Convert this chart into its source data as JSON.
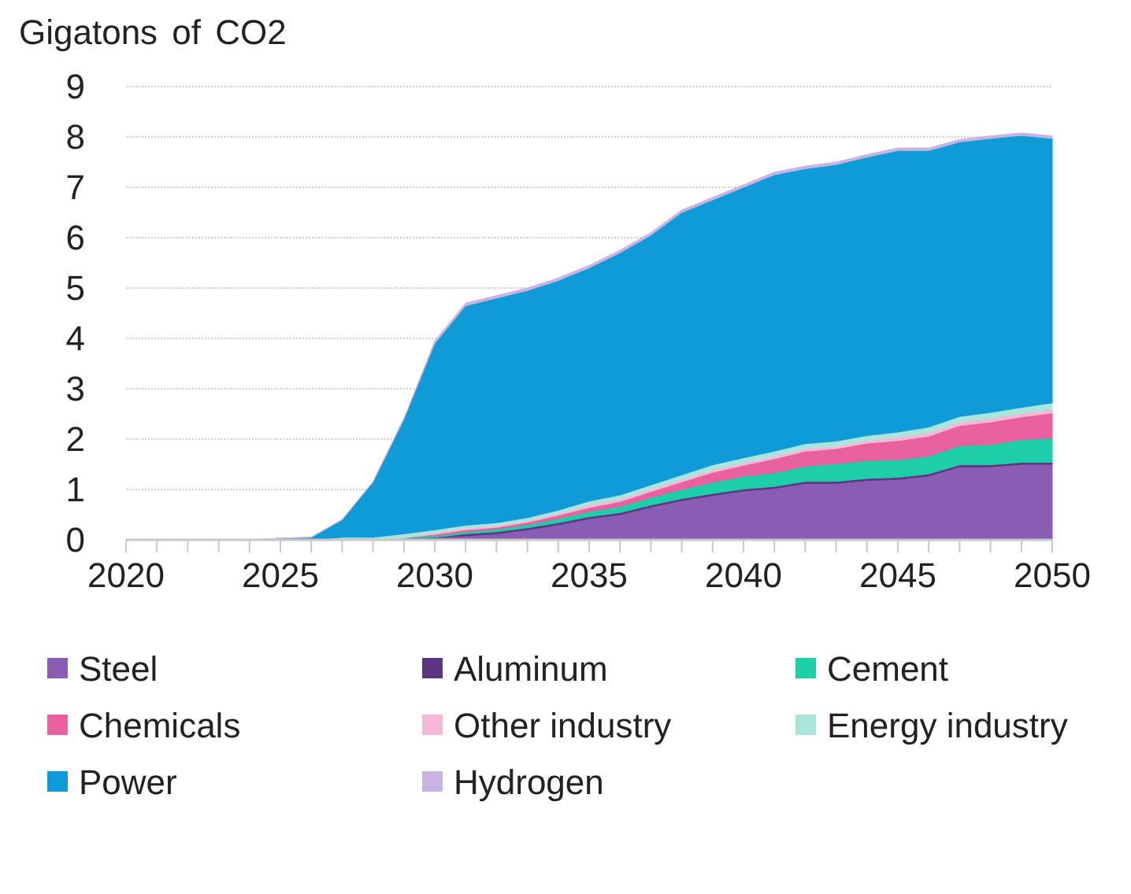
{
  "chart_data": {
    "type": "area",
    "stacked": true,
    "ylabel": "Gigatons of CO2",
    "x": [
      2020,
      2021,
      2022,
      2023,
      2024,
      2025,
      2026,
      2027,
      2028,
      2029,
      2030,
      2031,
      2032,
      2033,
      2034,
      2035,
      2036,
      2037,
      2038,
      2039,
      2040,
      2041,
      2042,
      2043,
      2044,
      2045,
      2046,
      2047,
      2048,
      2049,
      2050
    ],
    "series": [
      {
        "name": "Steel",
        "color": "#8a5db5",
        "values": [
          0,
          0,
          0,
          0,
          0,
          0,
          0,
          0,
          0,
          0.02,
          0.05,
          0.08,
          0.12,
          0.2,
          0.3,
          0.42,
          0.5,
          0.65,
          0.78,
          0.88,
          0.97,
          1.02,
          1.12,
          1.12,
          1.18,
          1.2,
          1.27,
          1.45,
          1.45,
          1.5,
          1.5
        ]
      },
      {
        "name": "Aluminum",
        "color": "#5a3580",
        "values": [
          0,
          0,
          0,
          0,
          0,
          0,
          0,
          0,
          0,
          0,
          0,
          0.04,
          0.04,
          0.04,
          0.04,
          0.04,
          0.04,
          0.04,
          0.04,
          0.04,
          0.04,
          0.04,
          0.04,
          0.04,
          0.04,
          0.04,
          0.04,
          0.04,
          0.04,
          0.04,
          0.04
        ]
      },
      {
        "name": "Cement",
        "color": "#1ccfa8",
        "values": [
          0,
          0,
          0,
          0,
          0,
          0,
          0,
          0,
          0,
          0.02,
          0.03,
          0.04,
          0.05,
          0.06,
          0.08,
          0.1,
          0.12,
          0.15,
          0.18,
          0.22,
          0.25,
          0.27,
          0.3,
          0.35,
          0.35,
          0.35,
          0.35,
          0.38,
          0.4,
          0.45,
          0.48
        ]
      },
      {
        "name": "Chemicals",
        "color": "#e8609e",
        "values": [
          0,
          0,
          0,
          0,
          0,
          0,
          0,
          0,
          0,
          0,
          0.03,
          0.04,
          0.04,
          0.05,
          0.07,
          0.08,
          0.1,
          0.12,
          0.15,
          0.2,
          0.22,
          0.28,
          0.3,
          0.3,
          0.35,
          0.38,
          0.4,
          0.4,
          0.45,
          0.45,
          0.5
        ]
      },
      {
        "name": "Other industry",
        "color": "#f5b8d8",
        "values": [
          0,
          0,
          0,
          0,
          0,
          0,
          0,
          0,
          0,
          0,
          0.03,
          0.03,
          0.03,
          0.03,
          0.03,
          0.05,
          0.05,
          0.05,
          0.05,
          0.05,
          0.05,
          0.05,
          0.05,
          0.05,
          0.05,
          0.07,
          0.07,
          0.07,
          0.07,
          0.07,
          0.07
        ]
      },
      {
        "name": "Energy industry",
        "color": "#a8e6dc",
        "values": [
          0,
          0,
          0,
          0,
          0,
          0,
          0,
          0.05,
          0.05,
          0.08,
          0.06,
          0.06,
          0.06,
          0.06,
          0.07,
          0.08,
          0.08,
          0.08,
          0.09,
          0.1,
          0.1,
          0.1,
          0.1,
          0.1,
          0.1,
          0.1,
          0.11,
          0.11,
          0.12,
          0.12,
          0.13
        ]
      },
      {
        "name": "Power",
        "color": "#0f9bd7",
        "values": [
          0,
          0,
          0,
          0,
          0,
          0.03,
          0.05,
          0.35,
          1.1,
          2.28,
          3.7,
          4.36,
          4.46,
          4.51,
          4.56,
          4.63,
          4.81,
          4.96,
          5.21,
          5.26,
          5.37,
          5.49,
          5.46,
          5.49,
          5.53,
          5.59,
          5.49,
          5.45,
          5.44,
          5.4,
          5.25
        ]
      },
      {
        "name": "Hydrogen",
        "color": "#c8b4e0",
        "values": [
          0,
          0,
          0,
          0,
          0,
          0,
          0,
          0,
          0,
          0,
          0.05,
          0.05,
          0.05,
          0.05,
          0.05,
          0.05,
          0.05,
          0.05,
          0.05,
          0.05,
          0.05,
          0.05,
          0.05,
          0.05,
          0.05,
          0.05,
          0.05,
          0.05,
          0.05,
          0.05,
          0.05
        ]
      }
    ],
    "xlim": [
      2020,
      2050
    ],
    "xticks": [
      2020,
      {
        "value": 2021,
        "label": null
      },
      {
        "value": 2022,
        "label": null
      },
      {
        "value": 2023,
        "label": null
      },
      {
        "value": 2024,
        "label": null
      },
      2025,
      {
        "value": 2026,
        "label": null
      },
      {
        "value": 2027,
        "label": null
      },
      {
        "value": 2028,
        "label": null
      },
      {
        "value": 2029,
        "label": null
      },
      2030,
      {
        "value": 2031,
        "label": null
      },
      {
        "value": 2032,
        "label": null
      },
      {
        "value": 2033,
        "label": null
      },
      {
        "value": 2034,
        "label": null
      },
      2035,
      {
        "value": 2036,
        "label": null
      },
      {
        "value": 2037,
        "label": null
      },
      {
        "value": 2038,
        "label": null
      },
      {
        "value": 2039,
        "label": null
      },
      2040,
      {
        "value": 2041,
        "label": null
      },
      {
        "value": 2042,
        "label": null
      },
      {
        "value": 2043,
        "label": null
      },
      {
        "value": 2044,
        "label": null
      },
      2045,
      {
        "value": 2046,
        "label": null
      },
      {
        "value": 2047,
        "label": null
      },
      {
        "value": 2048,
        "label": null
      },
      {
        "value": 2049,
        "label": null
      },
      2050
    ],
    "ylim": [
      0,
      9
    ],
    "yticks": [
      0,
      1,
      2,
      3,
      4,
      5,
      6,
      7,
      8,
      9
    ],
    "grid": "y",
    "legend": "bottom"
  }
}
